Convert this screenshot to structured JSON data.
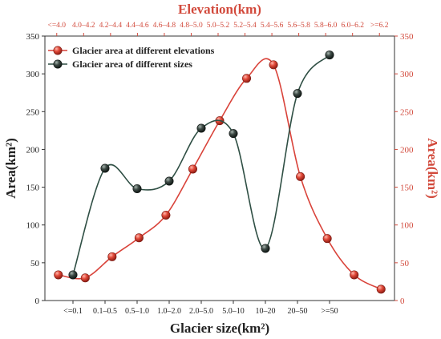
{
  "chart_data": {
    "type": "line",
    "title": "",
    "xlabel": "Glacier size(km²)",
    "x2label": "Elevation(km)",
    "ylabel": "Area(km²)",
    "y2label": "Area(km²)",
    "ylim": [
      0,
      350
    ],
    "yticks": [
      0,
      50,
      100,
      150,
      200,
      250,
      300,
      350
    ],
    "y2lim": [
      0,
      350
    ],
    "y2ticks": [
      0,
      50,
      100,
      150,
      200,
      250,
      300,
      350
    ],
    "size_categories": [
      "<=0.1",
      "0.1–0.5",
      "0.5–1.0",
      "1.0–2.0",
      "2.0–5.0",
      "5.0–10",
      "10–20",
      "20–50",
      ">=50"
    ],
    "elevation_categories": [
      "<=4.0",
      "4.0–4.2",
      "4.2–4.4",
      "4.4–4.6",
      "4.6–4.8",
      "4.8–5.0",
      "5.0–5.2",
      "5.2–5.4",
      "5.4–5.6",
      "5.6–5.8",
      "5.8–6.0",
      "6.0–6.2",
      ">=6.2"
    ],
    "legend_position": "top-left",
    "grid": false,
    "series": [
      {
        "name": "Glacier area at different elevations",
        "axis": "elevation",
        "color": "#d9433a",
        "categories": [
          "<=4.0",
          "4.0–4.2",
          "4.2–4.4",
          "4.4–4.6",
          "4.6–4.8",
          "4.8–5.0",
          "5.0–5.2",
          "5.2–5.4",
          "5.4–5.6",
          "5.6–5.8",
          "5.8–6.0",
          "6.0–6.2",
          ">=6.2"
        ],
        "values": [
          34,
          30,
          58,
          83,
          113,
          174,
          238,
          294,
          312,
          164,
          82,
          34,
          15
        ]
      },
      {
        "name": "Glacier area of different sizes",
        "axis": "size",
        "color": "#2f4f44",
        "categories": [
          "<=0.1",
          "0.1–0.5",
          "0.5–1.0",
          "1.0–2.0",
          "2.0–5.0",
          "5.0–10",
          "10–20",
          "20–50",
          ">=50"
        ],
        "values": [
          34,
          175,
          148,
          158,
          228,
          221,
          69,
          274,
          325
        ]
      }
    ]
  }
}
